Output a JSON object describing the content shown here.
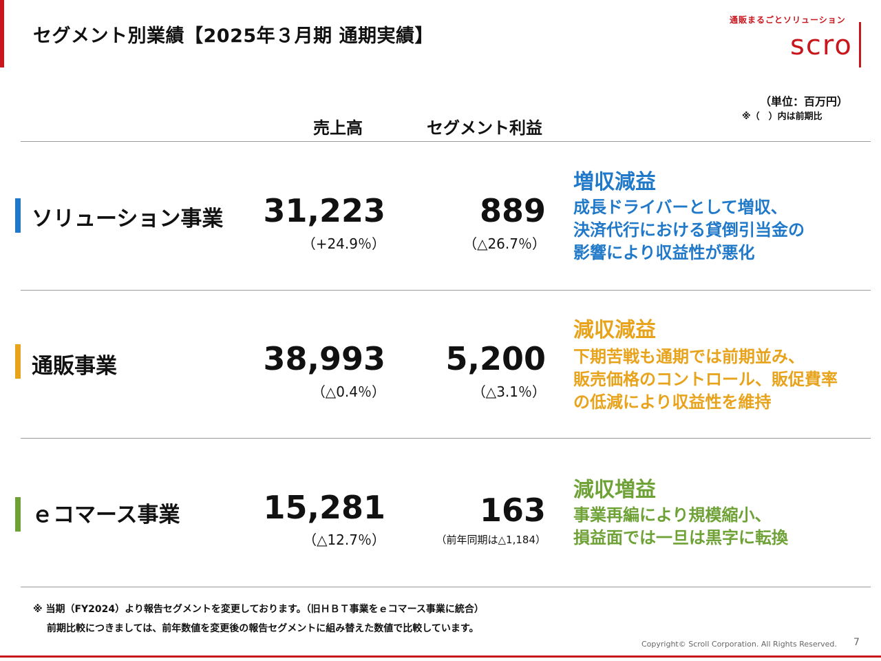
{
  "title": "セグメント別業績【2025年３月期 通期実績】",
  "logo": {
    "tagline": "通販まるごとソリューション",
    "wordmark": "scro"
  },
  "unit_note": "（単位：百万円）",
  "prior_note": "※（　）内は前期比",
  "columns": {
    "sales": "売上高",
    "profit": "セグメント利益"
  },
  "segments": [
    {
      "name": "ソリューション事業",
      "color": "#1f78c8",
      "sales": "31,223",
      "sales_change": "（+24.9％）",
      "profit": "889",
      "profit_change": "（△26.7％）",
      "verdict": "増収減益",
      "desc": [
        "成長ドライバーとして増収、",
        "決済代行における貸倒引当金の",
        "影響により収益性が悪化"
      ]
    },
    {
      "name": "通販事業",
      "color": "#e8a31c",
      "sales": "38,993",
      "sales_change": "（△0.4％）",
      "profit": "5,200",
      "profit_change": "（△3.1％）",
      "verdict": "減収減益",
      "desc": [
        "下期苦戦も通期では前期並み、",
        "販売価格のコントロール、販促費率",
        "の低減により収益性を維持"
      ]
    },
    {
      "name": "ｅコマース事業",
      "color": "#6ea236",
      "sales": "15,281",
      "sales_change": "（△12.7％）",
      "profit": "163",
      "profit_change": "（前年同期は△1,184）",
      "verdict": "減収増益",
      "desc": [
        "事業再編により規模縮小、",
        "損益面では一旦は黒字に転換"
      ]
    }
  ],
  "footnotes": [
    "※ 当期（FY2024）より報告セグメントを変更しております。（旧ＨＢＴ事業をｅコマース事業に統合）",
    "前期比較につきましては、前年数値を変更後の報告セグメントに組み替えた数値で比較しています。"
  ],
  "copyright": "Copyright© Scroll Corporation. All Rights Reserved.",
  "page_number": "7"
}
